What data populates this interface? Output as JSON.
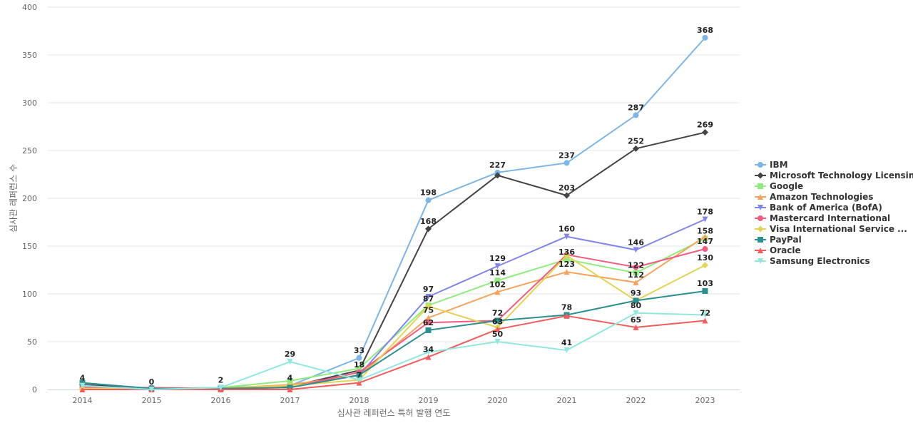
{
  "chart_data": {
    "type": "line",
    "xlabel": "심사관 레퍼런스 특허 발행 연도",
    "ylabel": "심사관 레퍼런스 수",
    "ylim": [
      0,
      400
    ],
    "yticks": [
      0,
      50,
      100,
      150,
      200,
      250,
      300,
      350,
      400
    ],
    "grid": true,
    "legend_position": "right",
    "categories": [
      "2014",
      "2015",
      "2016",
      "2017",
      "2018",
      "2019",
      "2020",
      "2021",
      "2022",
      "2023"
    ],
    "series": [
      {
        "name": "IBM",
        "color": "#7cb5e8",
        "marker": "circle",
        "values": [
          3,
          1,
          2,
          4,
          33,
          198,
          227,
          237,
          287,
          368
        ]
      },
      {
        "name": "Microsoft Technology Licensing",
        "color": "#434348",
        "marker": "diamond",
        "values": [
          5,
          1,
          1,
          3,
          20,
          168,
          224,
          203,
          252,
          269
        ]
      },
      {
        "name": "Google",
        "color": "#90ed7d",
        "marker": "square",
        "values": [
          2,
          1,
          2,
          9,
          22,
          88,
          114,
          136,
          122,
          158
        ]
      },
      {
        "name": "Amazon Technologies",
        "color": "#f7a35c",
        "marker": "triangle",
        "values": [
          2,
          1,
          1,
          5,
          15,
          75,
          102,
          123,
          112,
          160
        ]
      },
      {
        "name": "Bank of America (BofA)",
        "color": "#8085e9",
        "marker": "triangle-down",
        "values": [
          1,
          1,
          1,
          2,
          15,
          97,
          129,
          160,
          146,
          178
        ]
      },
      {
        "name": "Mastercard International",
        "color": "#f15c80",
        "marker": "circle",
        "values": [
          2,
          2,
          1,
          2,
          18,
          70,
          72,
          141,
          128,
          147
        ]
      },
      {
        "name": "Visa International Service ...",
        "color": "#e4d354",
        "marker": "diamond",
        "values": [
          1,
          1,
          1,
          4,
          10,
          87,
          65,
          140,
          93,
          130
        ]
      },
      {
        "name": "PayPal",
        "color": "#2b908f",
        "marker": "square",
        "values": [
          7,
          1,
          1,
          2,
          15,
          62,
          72,
          78,
          93,
          103
        ]
      },
      {
        "name": "Oracle",
        "color": "#f45b5b",
        "marker": "triangle",
        "values": [
          0,
          0,
          0,
          0,
          7,
          34,
          63,
          77,
          65,
          72
        ]
      },
      {
        "name": "Samsung Electronics",
        "color": "#91e8e1",
        "marker": "triangle-down",
        "values": [
          4,
          0,
          2,
          29,
          10,
          39,
          50,
          41,
          80,
          78
        ]
      }
    ],
    "data_labels": [
      {
        "category": "2014",
        "value": 4,
        "text": "4"
      },
      {
        "category": "2015",
        "value": 0,
        "text": "0"
      },
      {
        "category": "2016",
        "value": 2,
        "text": "2"
      },
      {
        "category": "2017",
        "value": 29,
        "text": "29"
      },
      {
        "category": "2017",
        "value": 4,
        "text": "4"
      },
      {
        "category": "2018",
        "value": 33,
        "text": "33"
      },
      {
        "category": "2018",
        "value": 18,
        "text": "18"
      },
      {
        "category": "2018",
        "value": 7,
        "text": "7"
      },
      {
        "category": "2019",
        "value": 198,
        "text": "198"
      },
      {
        "category": "2019",
        "value": 168,
        "text": "168"
      },
      {
        "category": "2019",
        "value": 97,
        "text": "97"
      },
      {
        "category": "2019",
        "value": 87,
        "text": "87"
      },
      {
        "category": "2019",
        "value": 75,
        "text": "75"
      },
      {
        "category": "2019",
        "value": 62,
        "text": "62"
      },
      {
        "category": "2019",
        "value": 34,
        "text": "34"
      },
      {
        "category": "2020",
        "value": 227,
        "text": "227"
      },
      {
        "category": "2020",
        "value": 129,
        "text": "129"
      },
      {
        "category": "2020",
        "value": 114,
        "text": "114"
      },
      {
        "category": "2020",
        "value": 102,
        "text": "102"
      },
      {
        "category": "2020",
        "value": 72,
        "text": "72"
      },
      {
        "category": "2020",
        "value": 63,
        "text": "63"
      },
      {
        "category": "2020",
        "value": 50,
        "text": "50"
      },
      {
        "category": "2021",
        "value": 237,
        "text": "237"
      },
      {
        "category": "2021",
        "value": 203,
        "text": "203"
      },
      {
        "category": "2021",
        "value": 160,
        "text": "160"
      },
      {
        "category": "2021",
        "value": 136,
        "text": "136"
      },
      {
        "category": "2021",
        "value": 123,
        "text": "123"
      },
      {
        "category": "2021",
        "value": 78,
        "text": "78"
      },
      {
        "category": "2021",
        "value": 41,
        "text": "41"
      },
      {
        "category": "2022",
        "value": 287,
        "text": "287"
      },
      {
        "category": "2022",
        "value": 252,
        "text": "252"
      },
      {
        "category": "2022",
        "value": 146,
        "text": "146"
      },
      {
        "category": "2022",
        "value": 122,
        "text": "122"
      },
      {
        "category": "2022",
        "value": 112,
        "text": "112"
      },
      {
        "category": "2022",
        "value": 93,
        "text": "93"
      },
      {
        "category": "2022",
        "value": 80,
        "text": "80"
      },
      {
        "category": "2022",
        "value": 65,
        "text": "65"
      },
      {
        "category": "2023",
        "value": 368,
        "text": "368"
      },
      {
        "category": "2023",
        "value": 269,
        "text": "269"
      },
      {
        "category": "2023",
        "value": 178,
        "text": "178"
      },
      {
        "category": "2023",
        "value": 158,
        "text": "158"
      },
      {
        "category": "2023",
        "value": 147,
        "text": "147"
      },
      {
        "category": "2023",
        "value": 130,
        "text": "130"
      },
      {
        "category": "2023",
        "value": 103,
        "text": "103"
      },
      {
        "category": "2023",
        "value": 72,
        "text": "72"
      }
    ]
  }
}
